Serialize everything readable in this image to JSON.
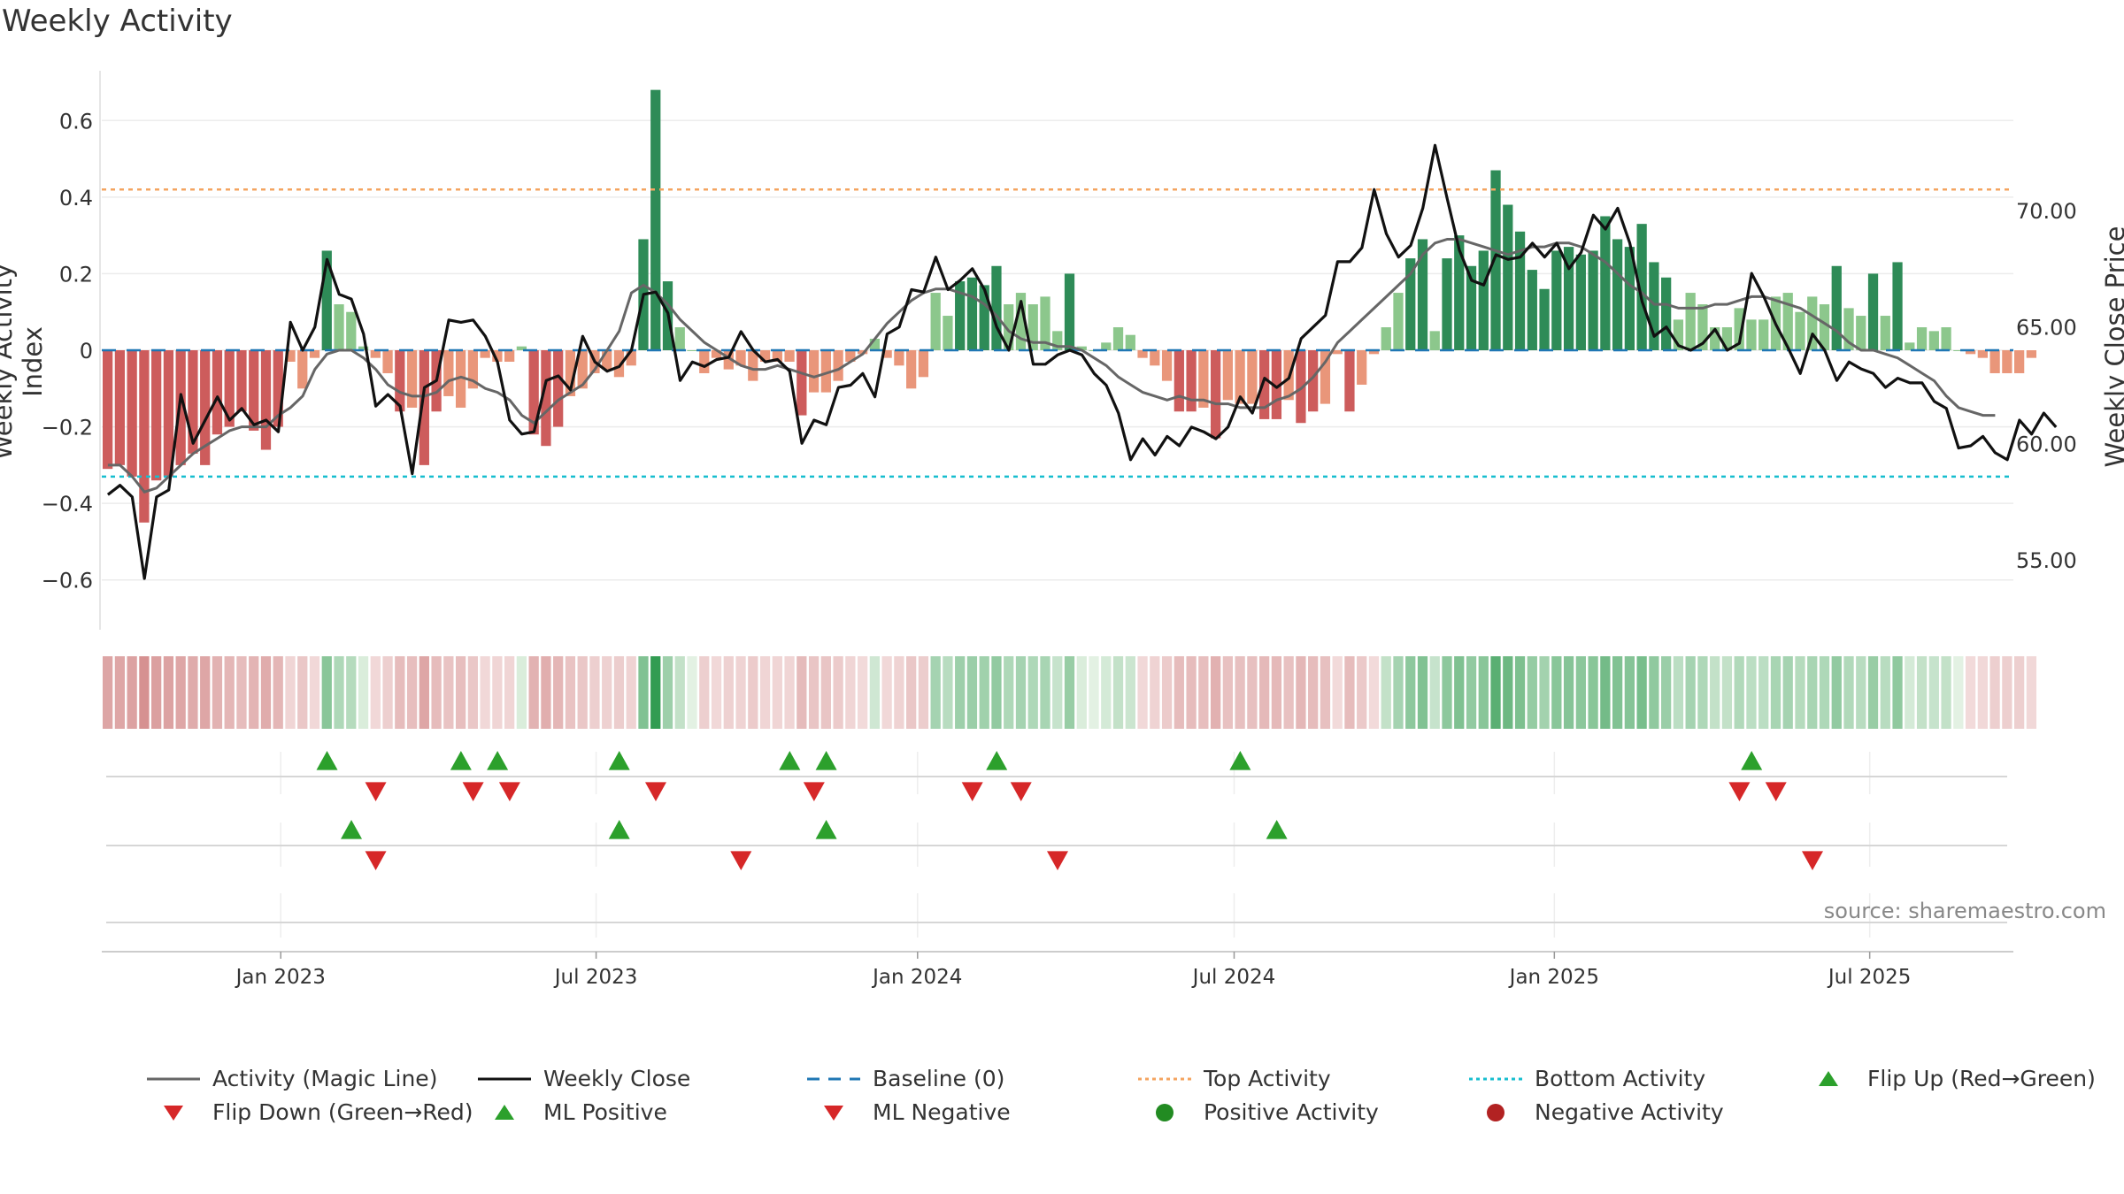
{
  "title": "Weekly Activity",
  "source": "source: sharemaestro.com",
  "colors": {
    "green_strong": "#2e8b57",
    "green_light": "#8cc78c",
    "red_strong": "#cd5c5c",
    "red_light": "#e9967a",
    "magic_line": "#666666",
    "close_line": "#111111",
    "baseline": "#1f77b4",
    "top_activity": "#f4a460",
    "bottom_activity": "#17becf",
    "marker_green": "#2ca02c",
    "marker_red": "#d62728",
    "dot_green": "#228b22",
    "dot_red": "#b22222"
  },
  "legend": [
    {
      "label": "Activity (Magic Line)",
      "kind": "line",
      "icon": "magic-line"
    },
    {
      "label": "Weekly Close",
      "kind": "line",
      "icon": "close-line"
    },
    {
      "label": "Baseline (0)",
      "kind": "dash",
      "icon": "baseline-dash"
    },
    {
      "label": "Top Activity",
      "kind": "dot-line",
      "icon": "top-dotted"
    },
    {
      "label": "Bottom Activity",
      "kind": "dot-line",
      "icon": "bottom-dotted"
    },
    {
      "label": "Flip Up (Red→Green)",
      "kind": "tri-up",
      "icon": "flip-up-icon"
    },
    {
      "label": "Flip Down (Green→Red)",
      "kind": "tri-down",
      "icon": "flip-down-icon"
    },
    {
      "label": "ML Positive",
      "kind": "tri-up",
      "icon": "ml-positive-icon"
    },
    {
      "label": "ML Negative",
      "kind": "tri-down",
      "icon": "ml-negative-icon"
    },
    {
      "label": "Positive Activity",
      "kind": "dot-green",
      "icon": "positive-dot-icon"
    },
    {
      "label": "Negative Activity",
      "kind": "dot-red",
      "icon": "negative-dot-icon"
    }
  ],
  "chart_data": {
    "type": "bar",
    "title": "Weekly Activity",
    "ylabel": "Weekly Activity Index",
    "y2label": "Weekly Close Price",
    "ylim": [
      -0.73,
      0.73
    ],
    "y2lim": [
      52.0,
      76.0
    ],
    "yticks": [
      -0.6,
      -0.4,
      -0.2,
      0,
      0.2,
      0.4,
      0.6
    ],
    "ytick_labels": [
      "−0.6",
      "−0.4",
      "−0.2",
      "0",
      "0.2",
      "0.4",
      "0.6"
    ],
    "y2ticks": [
      55,
      60,
      65,
      70
    ],
    "y2tick_labels": [
      "55.00",
      "60.00",
      "65.00",
      "70.00"
    ],
    "xlim_weeks": [
      0,
      157
    ],
    "x_ticks": [
      {
        "label": "Jan 2023",
        "week": 14.7
      },
      {
        "label": "Jul 2023",
        "week": 40.6
      },
      {
        "label": "Jan 2024",
        "week": 67.0
      },
      {
        "label": "Jul 2024",
        "week": 93.0
      },
      {
        "label": "Jan 2025",
        "week": 119.3
      },
      {
        "label": "Jul 2025",
        "week": 145.2
      }
    ],
    "top_activity": 0.42,
    "bottom_activity": -0.33,
    "baseline": 0,
    "activity": [
      -0.31,
      -0.3,
      -0.33,
      -0.45,
      -0.34,
      -0.33,
      -0.3,
      -0.27,
      -0.3,
      -0.22,
      -0.2,
      -0.16,
      -0.21,
      -0.26,
      -0.2,
      -0.03,
      -0.1,
      -0.02,
      0.26,
      0.12,
      0.1,
      0.01,
      -0.02,
      -0.06,
      -0.16,
      -0.15,
      -0.3,
      -0.16,
      -0.12,
      -0.15,
      -0.1,
      -0.02,
      -0.03,
      -0.03,
      0.01,
      -0.22,
      -0.25,
      -0.2,
      -0.12,
      -0.1,
      -0.06,
      -0.05,
      -0.07,
      -0.04,
      0.29,
      0.68,
      0.18,
      0.06,
      0.0,
      -0.06,
      -0.02,
      -0.05,
      -0.04,
      -0.08,
      -0.03,
      -0.03,
      -0.03,
      -0.17,
      -0.11,
      -0.11,
      -0.08,
      -0.03,
      -0.01,
      0.03,
      -0.02,
      -0.04,
      -0.1,
      -0.07,
      0.15,
      0.09,
      0.18,
      0.19,
      0.17,
      0.22,
      0.12,
      0.15,
      0.12,
      0.14,
      0.05,
      0.2,
      0.01,
      0.0,
      0.02,
      0.06,
      0.04,
      -0.02,
      -0.04,
      -0.08,
      -0.16,
      -0.16,
      -0.15,
      -0.23,
      -0.13,
      -0.14,
      -0.14,
      -0.18,
      -0.18,
      -0.13,
      -0.19,
      -0.16,
      -0.14,
      -0.01,
      -0.16,
      -0.09,
      -0.01,
      0.06,
      0.15,
      0.24,
      0.29,
      0.05,
      0.24,
      0.3,
      0.22,
      0.26,
      0.47,
      0.38,
      0.31,
      0.21,
      0.16,
      0.26,
      0.27,
      0.25,
      0.26,
      0.35,
      0.29,
      0.27,
      0.33,
      0.23,
      0.19,
      0.08,
      0.15,
      0.12,
      0.06,
      0.06,
      0.11,
      0.08,
      0.08,
      0.14,
      0.15,
      0.1,
      0.14,
      0.12,
      0.22,
      0.11,
      0.09,
      0.2,
      0.09,
      0.23,
      0.02,
      0.06,
      0.05,
      0.06,
      0.0,
      -0.01,
      -0.02,
      -0.06,
      -0.06,
      -0.06,
      -0.02
    ],
    "magic_line": [
      -0.3,
      -0.3,
      -0.33,
      -0.37,
      -0.36,
      -0.33,
      -0.3,
      -0.27,
      -0.25,
      -0.23,
      -0.21,
      -0.2,
      -0.2,
      -0.2,
      -0.17,
      -0.15,
      -0.12,
      -0.05,
      -0.01,
      0.0,
      0.0,
      -0.02,
      -0.05,
      -0.09,
      -0.11,
      -0.12,
      -0.12,
      -0.11,
      -0.08,
      -0.07,
      -0.08,
      -0.1,
      -0.11,
      -0.13,
      -0.17,
      -0.19,
      -0.16,
      -0.13,
      -0.11,
      -0.09,
      -0.05,
      0.0,
      0.05,
      0.15,
      0.17,
      0.15,
      0.12,
      0.08,
      0.05,
      0.02,
      0.0,
      -0.02,
      -0.04,
      -0.05,
      -0.05,
      -0.04,
      -0.05,
      -0.06,
      -0.07,
      -0.06,
      -0.05,
      -0.03,
      -0.01,
      0.03,
      0.07,
      0.1,
      0.13,
      0.15,
      0.16,
      0.16,
      0.15,
      0.14,
      0.12,
      0.09,
      0.05,
      0.03,
      0.02,
      0.02,
      0.01,
      0.01,
      0.0,
      -0.02,
      -0.04,
      -0.07,
      -0.09,
      -0.11,
      -0.12,
      -0.13,
      -0.12,
      -0.13,
      -0.13,
      -0.14,
      -0.14,
      -0.15,
      -0.15,
      -0.15,
      -0.13,
      -0.12,
      -0.1,
      -0.07,
      -0.03,
      0.02,
      0.05,
      0.08,
      0.11,
      0.14,
      0.17,
      0.2,
      0.25,
      0.28,
      0.29,
      0.29,
      0.28,
      0.27,
      0.26,
      0.25,
      0.26,
      0.27,
      0.27,
      0.28,
      0.28,
      0.27,
      0.25,
      0.23,
      0.2,
      0.17,
      0.15,
      0.12,
      0.12,
      0.11,
      0.11,
      0.11,
      0.12,
      0.12,
      0.13,
      0.14,
      0.14,
      0.13,
      0.12,
      0.11,
      0.09,
      0.07,
      0.05,
      0.02,
      0.0,
      0.0,
      -0.01,
      -0.02,
      -0.04,
      -0.06,
      -0.08,
      -0.12,
      -0.15,
      -0.16,
      -0.17,
      -0.17
    ],
    "weekly_close": [
      57.8,
      58.2,
      57.7,
      54.2,
      57.7,
      58.0,
      62.1,
      60.0,
      61.0,
      62.0,
      61.0,
      61.5,
      60.8,
      61.0,
      60.5,
      65.2,
      64.0,
      65.0,
      67.9,
      66.4,
      66.2,
      64.7,
      61.6,
      62.1,
      61.6,
      58.7,
      62.4,
      62.7,
      65.3,
      65.2,
      65.3,
      64.6,
      63.5,
      61.0,
      60.4,
      60.5,
      62.7,
      62.9,
      62.3,
      64.6,
      63.5,
      63.1,
      63.3,
      64.0,
      66.4,
      66.5,
      65.6,
      62.7,
      63.5,
      63.3,
      63.6,
      63.7,
      64.8,
      64.0,
      63.5,
      63.6,
      63.1,
      60.0,
      61.0,
      60.8,
      62.4,
      62.5,
      63.0,
      62.0,
      64.7,
      65.0,
      66.6,
      66.5,
      68.0,
      66.6,
      67.0,
      67.5,
      66.6,
      65.0,
      64.0,
      66.1,
      63.4,
      63.4,
      63.8,
      64.0,
      63.8,
      63.0,
      62.5,
      61.3,
      59.3,
      60.2,
      59.5,
      60.3,
      59.9,
      60.7,
      60.5,
      60.2,
      60.7,
      62.0,
      61.3,
      62.8,
      62.4,
      62.8,
      64.5,
      65.0,
      65.5,
      67.8,
      67.8,
      68.4,
      70.9,
      69.0,
      68.0,
      68.5,
      70.1,
      72.8,
      70.5,
      68.3,
      67.0,
      66.8,
      68.1,
      67.9,
      68.0,
      68.6,
      68.0,
      68.6,
      67.5,
      68.2,
      69.8,
      69.2,
      70.1,
      68.6,
      66.1,
      64.6,
      65.0,
      64.2,
      64.0,
      64.3,
      64.9,
      64.0,
      64.3,
      67.3,
      66.3,
      65.1,
      64.1,
      63.0,
      64.7,
      64.0,
      62.7,
      63.5,
      63.2,
      63.0,
      62.4,
      62.8,
      62.6,
      62.6,
      61.8,
      61.5,
      59.8,
      59.9,
      60.3,
      59.6,
      59.3,
      61.0,
      60.4,
      61.3,
      60.7
    ],
    "heat_strip": [
      -0.31,
      -0.3,
      -0.33,
      -0.45,
      -0.34,
      -0.33,
      -0.3,
      -0.27,
      -0.3,
      -0.22,
      -0.2,
      -0.16,
      -0.21,
      -0.26,
      -0.2,
      -0.03,
      -0.1,
      -0.02,
      0.26,
      0.12,
      0.1,
      0.01,
      -0.02,
      -0.06,
      -0.16,
      -0.15,
      -0.3,
      -0.16,
      -0.12,
      -0.15,
      -0.1,
      -0.02,
      -0.03,
      -0.03,
      0.01,
      -0.22,
      -0.25,
      -0.2,
      -0.12,
      -0.1,
      -0.06,
      -0.05,
      -0.07,
      -0.04,
      0.29,
      0.68,
      0.18,
      0.06,
      0.0,
      -0.06,
      -0.02,
      -0.05,
      -0.04,
      -0.08,
      -0.03,
      -0.03,
      -0.03,
      -0.17,
      -0.11,
      -0.11,
      -0.08,
      -0.03,
      -0.01,
      0.03,
      -0.02,
      -0.04,
      -0.1,
      -0.07,
      0.15,
      0.09,
      0.18,
      0.19,
      0.17,
      0.22,
      0.12,
      0.15,
      0.12,
      0.14,
      0.05,
      0.2,
      0.01,
      0.0,
      0.02,
      0.06,
      0.04,
      -0.02,
      -0.04,
      -0.08,
      -0.16,
      -0.16,
      -0.15,
      -0.23,
      -0.13,
      -0.14,
      -0.14,
      -0.18,
      -0.18,
      -0.13,
      -0.19,
      -0.16,
      -0.14,
      -0.01,
      -0.16,
      -0.09,
      -0.01,
      0.06,
      0.15,
      0.24,
      0.29,
      0.05,
      0.24,
      0.3,
      0.22,
      0.26,
      0.47,
      0.38,
      0.31,
      0.21,
      0.16,
      0.26,
      0.27,
      0.25,
      0.26,
      0.35,
      0.29,
      0.27,
      0.33,
      0.23,
      0.19,
      0.08,
      0.15,
      0.12,
      0.06,
      0.06,
      0.11,
      0.08,
      0.08,
      0.14,
      0.15,
      0.1,
      0.14,
      0.12,
      0.22,
      0.11,
      0.09,
      0.2,
      0.09,
      0.23,
      0.02,
      0.06,
      0.05,
      0.06,
      0.0,
      -0.01,
      -0.02,
      -0.06,
      -0.06,
      -0.06,
      -0.02
    ],
    "flip_up_weeks": [
      18.5,
      29.5,
      32.5,
      42.5,
      56.5,
      59.5,
      73.5,
      93.5,
      135.5
    ],
    "flip_down_weeks": [
      22.5,
      30.5,
      33.5,
      45.5,
      58.5,
      71.5,
      75.5,
      134.5,
      137.5
    ],
    "ml_positive_weeks": [
      20.5,
      42.5,
      59.5,
      96.5
    ],
    "ml_negative_weeks": [
      22.5,
      52.5,
      78.5,
      140.5
    ]
  }
}
